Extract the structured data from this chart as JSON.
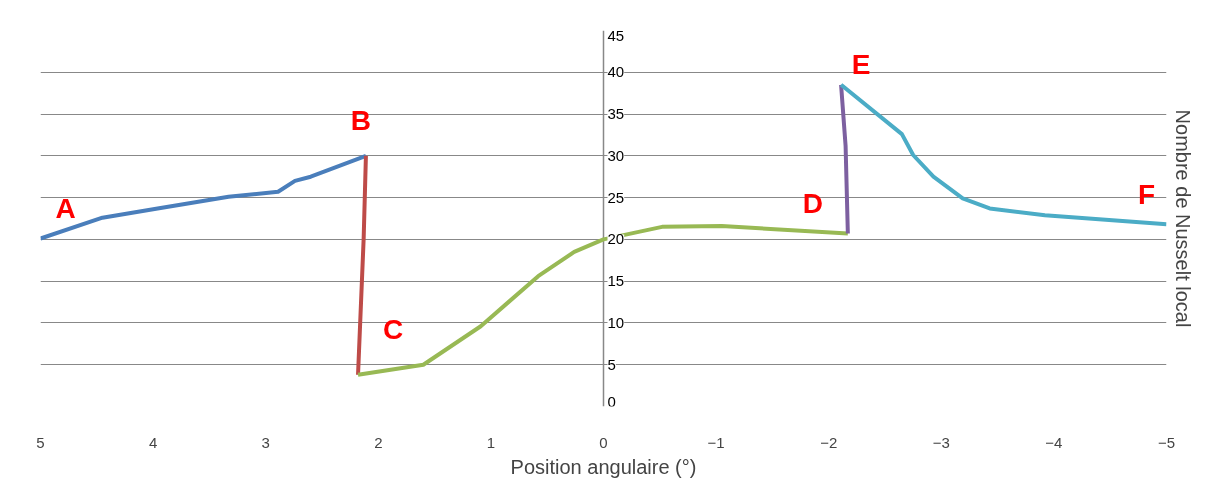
{
  "chart_data": {
    "type": "line",
    "xlabel": "Position angulaire (°)",
    "ylabel": "Nombre de Nusselt local",
    "xlim": [
      5,
      -5
    ],
    "xticks": [
      5,
      4,
      3,
      2,
      1,
      0,
      -1,
      -2,
      -3,
      -4,
      -5
    ],
    "ylim": [
      0,
      45
    ],
    "yticks": [
      0,
      5,
      10,
      15,
      20,
      25,
      30,
      35,
      40,
      45
    ],
    "grid": "y",
    "marker": "none",
    "line_style": "solid",
    "series": [
      {
        "color": "#4a7ebb",
        "x": [
          5,
          4.45,
          3.96,
          3.33,
          2.89,
          2.74,
          2.6,
          2.11
        ],
        "values": [
          20.1,
          22.6,
          23.7,
          25.1,
          25.7,
          27,
          27.5,
          30
        ]
      },
      {
        "color": "#be4b48",
        "x": [
          2.11,
          2.13,
          2.18
        ],
        "values": [
          30,
          20.1,
          3.8
        ]
      },
      {
        "color": "#98b954",
        "x": [
          2.18,
          1.6,
          1.09,
          0.58,
          0.26,
          0,
          -0.52,
          -1.05,
          -2.17
        ],
        "values": [
          3.8,
          5,
          9.6,
          15.6,
          18.5,
          20,
          21.5,
          21.6,
          20.7
        ]
      },
      {
        "color": "#7d60a0",
        "x": [
          -2.17,
          -2.15,
          -2.11
        ],
        "values": [
          20.7,
          31.2,
          38.5
        ]
      },
      {
        "color": "#4bacc6",
        "x": [
          -2.11,
          -2.65,
          -2.75,
          -2.93,
          -3.19,
          -3.43,
          -3.92,
          -5
        ],
        "values": [
          38.5,
          32.6,
          30.1,
          27.5,
          24.9,
          23.7,
          22.9,
          21.8
        ]
      }
    ],
    "annotations": [
      "A",
      "B",
      "C",
      "D",
      "E",
      "F"
    ]
  }
}
